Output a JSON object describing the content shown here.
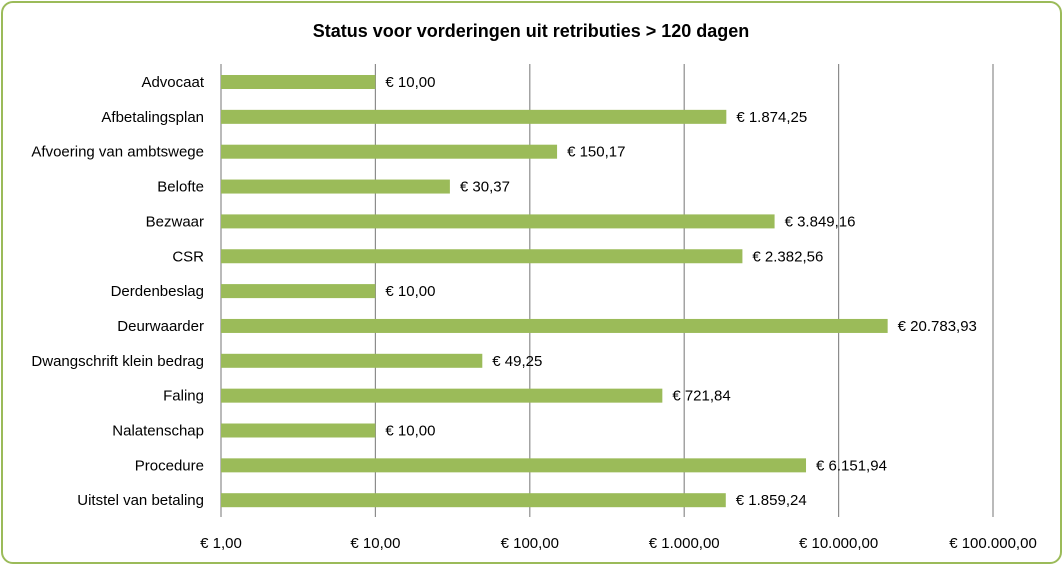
{
  "chart_data": {
    "type": "bar",
    "orientation": "horizontal",
    "title": "Status voor vorderingen uit retributies > 120 dagen",
    "xscale": "log",
    "xlim": [
      1,
      100000
    ],
    "grid": true,
    "legend": "none",
    "bar_color": "#9bbb59",
    "border_color": "#9bbb59",
    "categories": [
      "Advocaat",
      "Afbetalingsplan",
      "Afvoering van ambtswege",
      "Belofte",
      "Bezwaar",
      "CSR",
      "Derdenbeslag",
      "Deurwaarder",
      "Dwangschrift klein bedrag",
      "Faling",
      "Nalatenschap",
      "Procedure",
      "Uitstel van betaling"
    ],
    "values": [
      10.0,
      1874.25,
      150.17,
      30.37,
      3849.16,
      2382.56,
      10.0,
      20783.93,
      49.25,
      721.84,
      10.0,
      6151.94,
      1859.24
    ],
    "data_labels": [
      "€ 10,00",
      "€ 1.874,25",
      "€ 150,17",
      "€ 30,37",
      "€ 3.849,16",
      "€ 2.382,56",
      "€ 10,00",
      "€ 20.783,93",
      "€ 49,25",
      "€ 721,84",
      "€ 10,00",
      "€ 6.151,94",
      "€ 1.859,24"
    ],
    "ticks": [
      1,
      10,
      100,
      1000,
      10000,
      100000
    ],
    "tick_labels": [
      "€ 1,00",
      "€ 10,00",
      "€ 100,00",
      "€ 1.000,00",
      "€ 10.000,00",
      "€ 100.000,00"
    ]
  }
}
